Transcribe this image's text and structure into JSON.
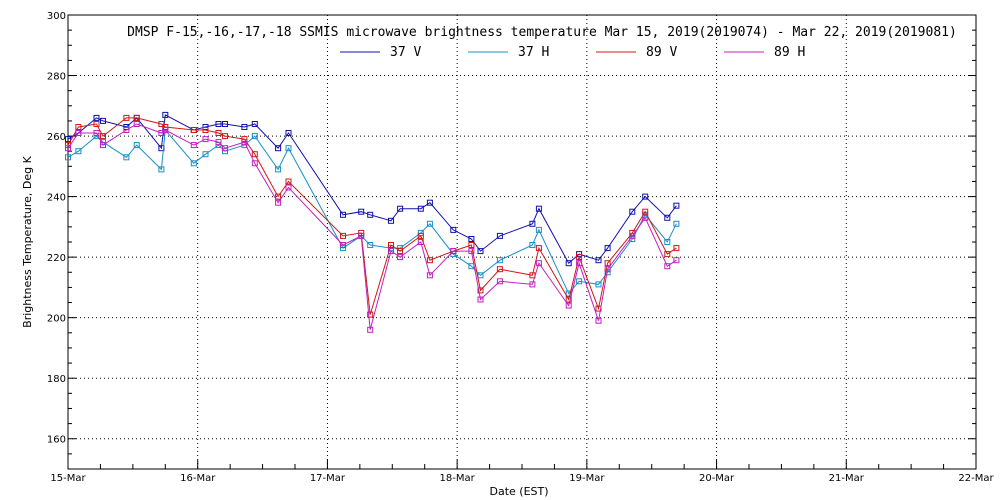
{
  "chart_data": {
    "type": "line",
    "title": "DMSP F-15,-16,-17,-18 SSMIS microwave brightness temperature Mar 15, 2019(2019074) - Mar 22, 2019(2019081)",
    "xlabel": "Date (EST)",
    "ylabel": "Brightness Temperature, Deg K",
    "xlim": [
      0,
      7
    ],
    "ylim": [
      150,
      300
    ],
    "x_ticks": [
      {
        "value": 0,
        "label": "15-Mar"
      },
      {
        "value": 1,
        "label": "16-Mar"
      },
      {
        "value": 2,
        "label": "17-Mar"
      },
      {
        "value": 3,
        "label": "18-Mar"
      },
      {
        "value": 4,
        "label": "19-Mar"
      },
      {
        "value": 5,
        "label": "20-Mar"
      },
      {
        "value": 6,
        "label": "21-Mar"
      },
      {
        "value": 7,
        "label": "22-Mar"
      }
    ],
    "y_ticks": [
      160,
      180,
      200,
      220,
      240,
      260,
      280,
      300
    ],
    "grid": true,
    "legend_placement": "top-center",
    "series": [
      {
        "name": "37 V",
        "color": "#1010b0",
        "points": [
          [
            0.0,
            259
          ],
          [
            0.08,
            261
          ],
          [
            0.22,
            266
          ],
          [
            0.27,
            265
          ],
          [
            0.45,
            263
          ],
          [
            0.53,
            266
          ],
          [
            0.72,
            256
          ],
          [
            0.75,
            267
          ],
          [
            0.97,
            262
          ],
          [
            1.06,
            263
          ],
          [
            1.16,
            264
          ],
          [
            1.21,
            264
          ],
          [
            1.36,
            263
          ],
          [
            1.44,
            264
          ],
          [
            1.62,
            256
          ],
          [
            1.7,
            261
          ],
          [
            2.12,
            234
          ],
          [
            2.26,
            235
          ],
          [
            2.33,
            234
          ],
          [
            2.49,
            232
          ],
          [
            2.56,
            236
          ],
          [
            2.72,
            236
          ],
          [
            2.79,
            238
          ],
          [
            2.97,
            229
          ],
          [
            3.11,
            226
          ],
          [
            3.18,
            222
          ],
          [
            3.33,
            227
          ],
          [
            3.58,
            231
          ],
          [
            3.63,
            236
          ],
          [
            3.86,
            218
          ],
          [
            3.94,
            221
          ],
          [
            4.09,
            219
          ],
          [
            4.16,
            223
          ],
          [
            4.35,
            235
          ],
          [
            4.45,
            240
          ],
          [
            4.62,
            233
          ],
          [
            4.69,
            237
          ]
        ]
      },
      {
        "name": "37 H",
        "color": "#1890c8",
        "points": [
          [
            0.0,
            253
          ],
          [
            0.08,
            255
          ],
          [
            0.22,
            260
          ],
          [
            0.27,
            258
          ],
          [
            0.45,
            253
          ],
          [
            0.53,
            257
          ],
          [
            0.72,
            249
          ],
          [
            0.75,
            262
          ],
          [
            0.97,
            251
          ],
          [
            1.06,
            254
          ],
          [
            1.16,
            257
          ],
          [
            1.21,
            255
          ],
          [
            1.36,
            257
          ],
          [
            1.44,
            260
          ],
          [
            1.62,
            249
          ],
          [
            1.7,
            256
          ],
          [
            2.12,
            223
          ],
          [
            2.26,
            227
          ],
          [
            2.33,
            224
          ],
          [
            2.49,
            223
          ],
          [
            2.56,
            223
          ],
          [
            2.72,
            228
          ],
          [
            2.79,
            231
          ],
          [
            2.97,
            221
          ],
          [
            3.11,
            217
          ],
          [
            3.18,
            214
          ],
          [
            3.33,
            219
          ],
          [
            3.58,
            224
          ],
          [
            3.63,
            229
          ],
          [
            3.86,
            208
          ],
          [
            3.94,
            212
          ],
          [
            4.09,
            211
          ],
          [
            4.16,
            215
          ],
          [
            4.35,
            226
          ],
          [
            4.45,
            234
          ],
          [
            4.62,
            225
          ],
          [
            4.69,
            231
          ]
        ]
      },
      {
        "name": "89 V",
        "color": "#d01818",
        "points": [
          [
            0.0,
            257
          ],
          [
            0.08,
            263
          ],
          [
            0.22,
            264
          ],
          [
            0.27,
            260
          ],
          [
            0.45,
            266
          ],
          [
            0.53,
            266
          ],
          [
            0.72,
            264
          ],
          [
            0.75,
            263
          ],
          [
            0.97,
            262
          ],
          [
            1.06,
            262
          ],
          [
            1.16,
            261
          ],
          [
            1.21,
            260
          ],
          [
            1.36,
            259
          ],
          [
            1.44,
            254
          ],
          [
            1.62,
            240
          ],
          [
            1.7,
            245
          ],
          [
            2.12,
            227
          ],
          [
            2.26,
            228
          ],
          [
            2.33,
            201
          ],
          [
            2.49,
            224
          ],
          [
            2.56,
            222
          ],
          [
            2.72,
            227
          ],
          [
            2.79,
            219
          ],
          [
            2.97,
            222
          ],
          [
            3.11,
            224
          ],
          [
            3.18,
            209
          ],
          [
            3.33,
            216
          ],
          [
            3.58,
            214
          ],
          [
            3.63,
            223
          ],
          [
            3.86,
            206
          ],
          [
            3.94,
            220
          ],
          [
            4.09,
            203
          ],
          [
            4.16,
            218
          ],
          [
            4.35,
            228
          ],
          [
            4.45,
            235
          ],
          [
            4.62,
            221
          ],
          [
            4.69,
            223
          ]
        ]
      },
      {
        "name": "89 H",
        "color": "#c020c0",
        "points": [
          [
            0.0,
            256
          ],
          [
            0.08,
            261
          ],
          [
            0.22,
            261
          ],
          [
            0.27,
            257
          ],
          [
            0.45,
            262
          ],
          [
            0.53,
            264
          ],
          [
            0.72,
            261
          ],
          [
            0.75,
            262
          ],
          [
            0.97,
            257
          ],
          [
            1.06,
            259
          ],
          [
            1.16,
            258
          ],
          [
            1.21,
            256
          ],
          [
            1.36,
            258
          ],
          [
            1.44,
            251
          ],
          [
            1.62,
            238
          ],
          [
            1.7,
            243
          ],
          [
            2.12,
            224
          ],
          [
            2.26,
            227
          ],
          [
            2.33,
            196
          ],
          [
            2.49,
            222
          ],
          [
            2.56,
            220
          ],
          [
            2.72,
            225
          ],
          [
            2.79,
            214
          ],
          [
            2.97,
            222
          ],
          [
            3.11,
            222
          ],
          [
            3.18,
            206
          ],
          [
            3.33,
            212
          ],
          [
            3.58,
            211
          ],
          [
            3.63,
            218
          ],
          [
            3.86,
            204
          ],
          [
            3.94,
            218
          ],
          [
            4.09,
            199
          ],
          [
            4.16,
            216
          ],
          [
            4.35,
            227
          ],
          [
            4.45,
            233
          ],
          [
            4.62,
            217
          ],
          [
            4.69,
            219
          ]
        ]
      }
    ]
  }
}
